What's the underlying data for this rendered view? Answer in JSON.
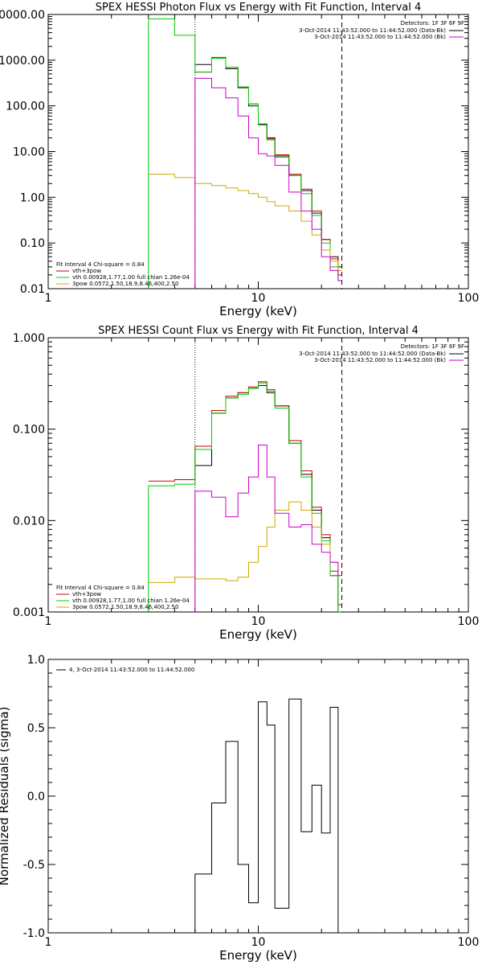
{
  "chart_data": [
    {
      "type": "line",
      "title": "SPEX HESSI Photon Flux vs Energy with Fit Function, Interval 4",
      "xlabel": "Energy (keV)",
      "ylabel": "",
      "xscale": "log",
      "yscale": "log",
      "xlim": [
        1,
        100
      ],
      "ylim": [
        0.01,
        10000
      ],
      "x_ticks": [
        "1",
        "10",
        "100"
      ],
      "y_ticks": [
        "0.01",
        "0.10",
        "1.00",
        "10.00",
        "100.00",
        "1000.00",
        "10000.00"
      ],
      "markers": [
        5,
        25
      ],
      "legend_header": "Detectors: 1F 3F 6F 9F",
      "legend_top_right": [
        {
          "label": "3-Oct-2014 11:43:52.000 to 11:44:52.000 (Data-Bk)",
          "color": "#000000"
        },
        {
          "label": "3-Oct-2014 11:43:52.000 to 11:44:52.000 (Bk)",
          "color": "#cc00cc"
        }
      ],
      "fit_label": "Fit Interval  4    Chi-square = 0.84",
      "legend_bottom_left": [
        {
          "label": "vth+3pow",
          "color": "#cc0000"
        },
        {
          "label": "vth 0.00928,1.77,1.00  full chian 1.26e-04",
          "color": "#00cc00"
        },
        {
          "label": "3pow 0.0572,1.50,18.9,8.46,400,2.50",
          "color": "#ccaa00"
        }
      ],
      "edges": [
        3,
        4,
        5,
        6,
        7,
        8,
        9,
        10,
        11,
        12,
        14,
        16,
        18,
        20,
        22,
        24,
        25
      ],
      "series": [
        {
          "name": "data",
          "color": "#000000",
          "values": [
            null,
            null,
            800,
            1100,
            650,
            250,
            100,
            40,
            20,
            8,
            3,
            1.4,
            0.45,
            0.12,
            0.05,
            0.03
          ]
        },
        {
          "name": "vth+3pow",
          "color": "#cc0000",
          "values": [
            null,
            null,
            550,
            1150,
            700,
            260,
            110,
            38,
            19,
            8.5,
            3.2,
            1.5,
            0.5,
            0.12,
            0.045,
            0.02
          ]
        },
        {
          "name": "vth",
          "color": "#00cc00",
          "values": [
            8000,
            3500,
            550,
            1100,
            700,
            260,
            110,
            38,
            18,
            7.5,
            3,
            1.2,
            0.4,
            0.1,
            0.03,
            0.015
          ]
        },
        {
          "name": "3pow",
          "color": "#ccaa00",
          "values": [
            3.2,
            2.7,
            2.0,
            1.8,
            1.6,
            1.4,
            1.2,
            1.0,
            0.8,
            0.65,
            0.5,
            0.3,
            0.15,
            0.07,
            0.04,
            0.025
          ]
        },
        {
          "name": "bk",
          "color": "#cc00cc",
          "values": [
            null,
            null,
            400,
            250,
            150,
            60,
            20,
            9,
            8,
            5,
            1.3,
            0.5,
            0.2,
            0.05,
            0.025,
            0.015
          ]
        }
      ]
    },
    {
      "type": "line",
      "title": "SPEX HESSI Count Flux vs Energy with Fit Function, Interval 4",
      "xlabel": "Energy (keV)",
      "ylabel": "",
      "xscale": "log",
      "yscale": "log",
      "xlim": [
        1,
        100
      ],
      "ylim": [
        0.001,
        1
      ],
      "x_ticks": [
        "1",
        "10",
        "100"
      ],
      "y_ticks": [
        "0.001",
        "0.010",
        "0.100",
        "1.000"
      ],
      "markers": [
        5,
        25
      ],
      "legend_header": "Detectors: 1F 3F 6F 9F",
      "legend_top_right": [
        {
          "label": "3-Oct-2014 11:43:52.000 to 11:44:52.000 (Data-Bk)",
          "color": "#000000"
        },
        {
          "label": "3-Oct-2014 11:43:52.000 to 11:44:52.000 (Bk)",
          "color": "#cc00cc"
        }
      ],
      "fit_label": "Fit Interval  4    Chi-square = 0.84",
      "legend_bottom_left": [
        {
          "label": "vth+3pow",
          "color": "#cc0000"
        },
        {
          "label": "vth 0.00928,1.77,1.00  full chian 1.26e-04",
          "color": "#00cc00"
        },
        {
          "label": "3pow 0.0572,1.50,18.9,8.46,400,2.50",
          "color": "#ccaa00"
        }
      ],
      "edges": [
        3,
        4,
        5,
        6,
        7,
        8,
        9,
        10,
        11,
        12,
        14,
        16,
        18,
        20,
        22,
        24,
        25
      ],
      "series": [
        {
          "name": "data",
          "color": "#000000",
          "values": [
            null,
            null,
            0.04,
            0.15,
            0.22,
            0.25,
            0.28,
            0.3,
            0.25,
            0.18,
            0.07,
            0.032,
            0.013,
            0.0065,
            0.0025,
            0.001
          ]
        },
        {
          "name": "vth+3pow",
          "color": "#cc0000",
          "values": [
            0.027,
            0.028,
            0.065,
            0.16,
            0.23,
            0.25,
            0.29,
            0.33,
            0.27,
            0.18,
            0.075,
            0.035,
            0.014,
            0.007,
            0.0028,
            0.0012
          ]
        },
        {
          "name": "vth",
          "color": "#00cc00",
          "values": [
            0.024,
            0.025,
            0.06,
            0.15,
            0.22,
            0.24,
            0.28,
            0.32,
            0.26,
            0.17,
            0.07,
            0.03,
            0.012,
            0.006,
            0.0025,
            0.001
          ]
        },
        {
          "name": "3pow",
          "color": "#ccaa00",
          "values": [
            0.0021,
            0.0024,
            0.0023,
            0.0023,
            0.0022,
            0.0024,
            0.0035,
            0.0052,
            0.0085,
            0.013,
            0.016,
            0.013,
            0.0085,
            0.0055,
            0.0035,
            0.0025
          ]
        },
        {
          "name": "bk",
          "color": "#cc00cc",
          "values": [
            null,
            null,
            0.021,
            0.018,
            0.011,
            0.02,
            0.03,
            0.067,
            0.03,
            0.012,
            0.0085,
            0.009,
            0.0055,
            0.0045,
            0.0035,
            0.0025
          ]
        }
      ]
    },
    {
      "type": "line",
      "title": "",
      "xlabel": "Energy (keV)",
      "ylabel": "Normalized Residuals (sigma)",
      "xscale": "log",
      "yscale": "linear",
      "xlim": [
        1,
        100
      ],
      "ylim": [
        -1.0,
        1.0
      ],
      "x_ticks": [
        "1",
        "10",
        "100"
      ],
      "y_ticks": [
        "-1.0",
        "-0.5",
        "0.0",
        "0.5",
        "1.0"
      ],
      "legend": [
        {
          "label": "4,  3-Oct-2014 11:43:52.000 to 11:44:52.000",
          "color": "#000000"
        }
      ],
      "edges": [
        5,
        6,
        7,
        8,
        9,
        10,
        11,
        12,
        14,
        16,
        18,
        20,
        22,
        24,
        25
      ],
      "values": [
        -0.57,
        -0.05,
        0.4,
        -0.5,
        -0.78,
        0.69,
        0.52,
        -0.82,
        0.71,
        -0.26,
        0.08,
        -0.27,
        0.65,
        -1.0
      ]
    }
  ]
}
